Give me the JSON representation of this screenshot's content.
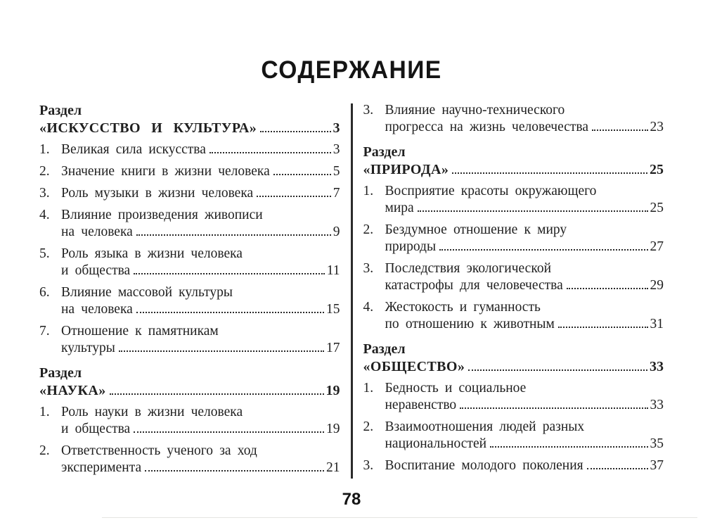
{
  "title": "СОДЕРЖАНИЕ",
  "page_number": "78",
  "colors": {
    "ink": "#1f1f1f",
    "leader": "#2b2b2b"
  },
  "columns": {
    "left": [
      {
        "type": "section",
        "label": "Раздел",
        "name": "«ИСКУССТВО И КУЛЬТУРА»",
        "page": "3"
      },
      {
        "type": "item",
        "num": "1.",
        "lines": [
          "Великая сила искусства"
        ],
        "page": "3"
      },
      {
        "type": "item",
        "num": "2.",
        "lines": [
          "Значение книги в жизни человека"
        ],
        "page": "5"
      },
      {
        "type": "item",
        "num": "3.",
        "lines": [
          "Роль музыки в жизни человека"
        ],
        "page": "7"
      },
      {
        "type": "item",
        "num": "4.",
        "lines": [
          "Влияние произведения живописи",
          "на человека"
        ],
        "page": "9"
      },
      {
        "type": "item",
        "num": "5.",
        "lines": [
          "Роль языка в жизни человека",
          "и общества"
        ],
        "page": "11"
      },
      {
        "type": "item",
        "num": "6.",
        "lines": [
          "Влияние массовой культуры",
          "на человека"
        ],
        "page": "15"
      },
      {
        "type": "item",
        "num": "7.",
        "lines": [
          "Отношение к памятникам",
          "культуры"
        ],
        "page": "17"
      },
      {
        "type": "section",
        "label": "Раздел",
        "name": "«НАУКА»",
        "page": "19"
      },
      {
        "type": "item",
        "num": "1.",
        "lines": [
          "Роль науки в жизни человека",
          "и общества"
        ],
        "page": "19"
      },
      {
        "type": "item",
        "num": "2.",
        "lines": [
          "Ответственность ученого за ход",
          "эксперимента"
        ],
        "page": "21"
      }
    ],
    "right": [
      {
        "type": "item",
        "num": "3.",
        "lines": [
          "Влияние научно-технического",
          "прогресса на жизнь человечества"
        ],
        "page": "23"
      },
      {
        "type": "section",
        "label": "Раздел",
        "name": "«ПРИРОДА»",
        "page": "25"
      },
      {
        "type": "item",
        "num": "1.",
        "lines": [
          "Восприятие красоты окружающего",
          "мира"
        ],
        "page": "25"
      },
      {
        "type": "item",
        "num": "2.",
        "lines": [
          "Бездумное отношение к миру",
          "природы"
        ],
        "page": "27"
      },
      {
        "type": "item",
        "num": "3.",
        "lines": [
          "Последствия экологической",
          "катастрофы для человечества"
        ],
        "page": "29"
      },
      {
        "type": "item",
        "num": "4.",
        "lines": [
          "Жестокость и гуманность",
          "по отношению к животным"
        ],
        "page": "31"
      },
      {
        "type": "section",
        "label": "Раздел",
        "name": "«ОБЩЕСТВО»",
        "page": "33"
      },
      {
        "type": "item",
        "num": "1.",
        "lines": [
          "Бедность и социальное",
          "неравенство"
        ],
        "page": "33"
      },
      {
        "type": "item",
        "num": "2.",
        "lines": [
          "Взаимоотношения людей разных",
          "национальностей"
        ],
        "page": "35"
      },
      {
        "type": "item",
        "num": "3.",
        "lines": [
          "Воспитание молодого поколения"
        ],
        "page": "37"
      }
    ]
  }
}
